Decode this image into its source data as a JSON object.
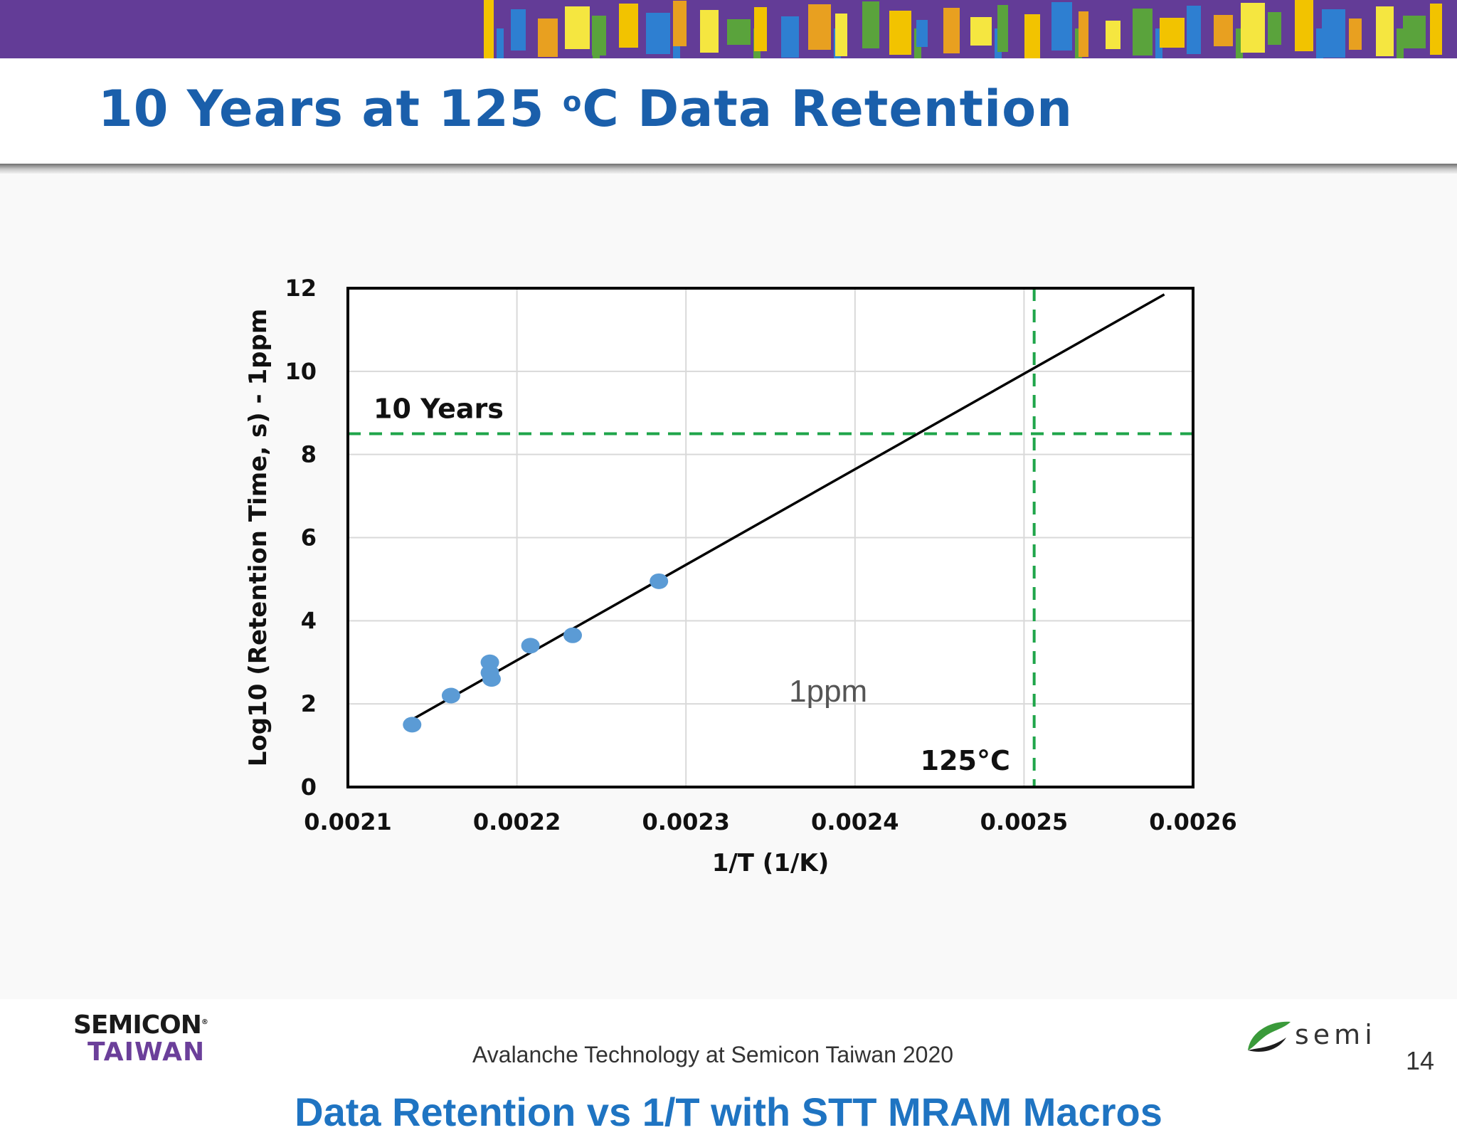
{
  "title": {
    "main": "10 Years at 125 ",
    "sup": "o",
    "unit": "C Data Retention"
  },
  "banner": {
    "colors": [
      "#633c97",
      "#f2c300",
      "#2e7fd1",
      "#e8a020",
      "#f5e640",
      "#5aa33c"
    ]
  },
  "chart_data": {
    "type": "scatter",
    "xlabel": "1/T (1/K)",
    "ylabel": "Log10 (Retention Time, s) - 1ppm",
    "xlim": [
      0.0021,
      0.0026
    ],
    "ylim": [
      0,
      12
    ],
    "x_ticks": [
      "0.0021",
      "0.0022",
      "0.0023",
      "0.0024",
      "0.0025",
      "0.0026"
    ],
    "y_ticks": [
      "0",
      "2",
      "4",
      "6",
      "8",
      "10",
      "12"
    ],
    "grid": true,
    "series": [
      {
        "points": [
          {
            "x": 0.002138,
            "y": 1.5
          },
          {
            "x": 0.002161,
            "y": 2.2
          },
          {
            "x": 0.002184,
            "y": 3.0
          },
          {
            "x": 0.002184,
            "y": 2.75
          },
          {
            "x": 0.002185,
            "y": 2.6
          },
          {
            "x": 0.002208,
            "y": 3.4
          },
          {
            "x": 0.002233,
            "y": 3.65
          },
          {
            "x": 0.002284,
            "y": 4.95
          }
        ],
        "color": "#5b9bd5"
      }
    ],
    "trendline": {
      "from": {
        "x": 0.002137,
        "y": 1.6
      },
      "to": {
        "x": 0.002583,
        "y": 11.85
      },
      "color": "#000000"
    },
    "reference_lines": {
      "ten_years": {
        "y": 8.5,
        "label": "10 Years",
        "color": "#1fa54a"
      },
      "temp_125C": {
        "x": 0.002506,
        "label": "125°C",
        "color": "#1fa54a"
      }
    },
    "annotation": "1ppm"
  },
  "caption": "Data Retention vs 1/T with STT MRAM Macros",
  "footer": {
    "logo_line1": "SEMICON",
    "logo_mark": "®",
    "logo_line2": "TAIWAN",
    "text": "Avalanche Technology at Semicon Taiwan 2020",
    "semi_word": "semi",
    "page_number": "14"
  }
}
